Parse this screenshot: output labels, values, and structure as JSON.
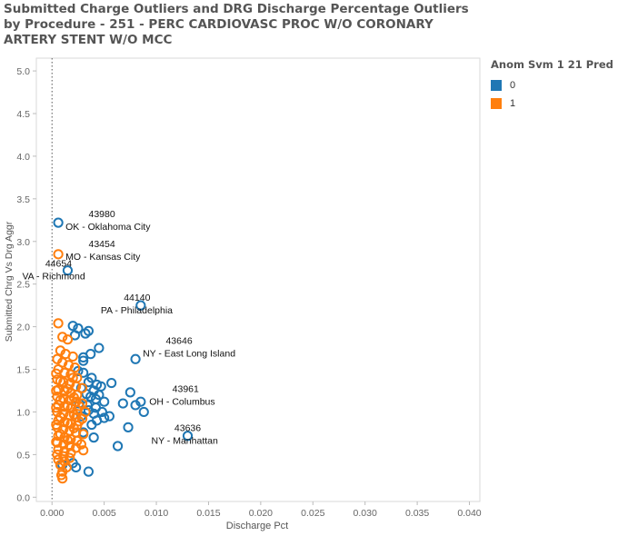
{
  "chart_data": {
    "type": "scatter",
    "title": "Submitted Charge Outliers and DRG Discharge Percentage Outliers by Procedure - 251 - PERC CARDIOVASC PROC W/O CORONARY ARTERY STENT W/O MCC",
    "xlabel": "Discharge Pct",
    "ylabel": "Submitted Chrg Vs Drg Aggr",
    "xlim": [
      -0.0015,
      0.041
    ],
    "ylim": [
      -0.05,
      5.15
    ],
    "x_ticks": [
      "0.000",
      "0.005",
      "0.010",
      "0.015",
      "0.020",
      "0.025",
      "0.030",
      "0.035",
      "0.040"
    ],
    "x_tick_values": [
      0,
      0.005,
      0.01,
      0.015,
      0.02,
      0.025,
      0.03,
      0.035,
      0.04
    ],
    "y_ticks": [
      "0.0",
      "0.5",
      "1.0",
      "1.5",
      "2.0",
      "2.5",
      "3.0",
      "3.5",
      "4.0",
      "4.5",
      "5.0"
    ],
    "y_tick_values": [
      0,
      0.5,
      1,
      1.5,
      2,
      2.5,
      3,
      3.5,
      4,
      4.5,
      5
    ],
    "reference_line_x": 0,
    "grid": false,
    "legend": {
      "title": "Anom Svm 1 21 Pred",
      "placement": "top-right",
      "entries": [
        {
          "label": "0",
          "color": "#1f77b4"
        },
        {
          "label": "1",
          "color": "#ff7f0e"
        }
      ]
    },
    "series": [
      {
        "name": "0",
        "color": "#1f77b4",
        "points": [
          [
            0.0006,
            3.22
          ],
          [
            0.0015,
            2.66
          ],
          [
            0.0085,
            2.25
          ],
          [
            0.002,
            2.01
          ],
          [
            0.0025,
            1.98
          ],
          [
            0.0035,
            1.95
          ],
          [
            0.0032,
            1.92
          ],
          [
            0.0022,
            1.9
          ],
          [
            0.0045,
            1.75
          ],
          [
            0.0037,
            1.68
          ],
          [
            0.003,
            1.64
          ],
          [
            0.003,
            1.6
          ],
          [
            0.008,
            1.62
          ],
          [
            0.0025,
            1.48
          ],
          [
            0.003,
            1.46
          ],
          [
            0.0038,
            1.4
          ],
          [
            0.0035,
            1.35
          ],
          [
            0.0047,
            1.3
          ],
          [
            0.0043,
            1.32
          ],
          [
            0.0057,
            1.34
          ],
          [
            0.0028,
            1.28
          ],
          [
            0.004,
            1.25
          ],
          [
            0.0045,
            1.2
          ],
          [
            0.0033,
            1.21
          ],
          [
            0.0037,
            1.18
          ],
          [
            0.0042,
            1.15
          ],
          [
            0.0075,
            1.23
          ],
          [
            0.005,
            1.12
          ],
          [
            0.0068,
            1.1
          ],
          [
            0.008,
            1.08
          ],
          [
            0.0085,
            1.12
          ],
          [
            0.0042,
            1.05
          ],
          [
            0.0035,
            1.02
          ],
          [
            0.0048,
            1.0
          ],
          [
            0.0088,
            1.0
          ],
          [
            0.004,
            0.98
          ],
          [
            0.0055,
            0.95
          ],
          [
            0.005,
            0.93
          ],
          [
            0.0043,
            0.9
          ],
          [
            0.0038,
            0.85
          ],
          [
            0.0073,
            0.82
          ],
          [
            0.003,
            0.76
          ],
          [
            0.004,
            0.7
          ],
          [
            0.013,
            0.72
          ],
          [
            0.0063,
            0.6
          ],
          [
            0.002,
            0.4
          ],
          [
            0.0023,
            0.35
          ],
          [
            0.0035,
            0.3
          ],
          [
            0.001,
            0.38
          ],
          [
            0.0028,
            0.95
          ],
          [
            0.0026,
            1.1
          ],
          [
            0.0034,
            1.08
          ]
        ]
      },
      {
        "name": "1",
        "color": "#ff7f0e",
        "points": [
          [
            0.0006,
            2.85
          ],
          [
            0.0006,
            2.04
          ],
          [
            0.001,
            1.88
          ],
          [
            0.0015,
            1.85
          ],
          [
            0.0008,
            1.72
          ],
          [
            0.0013,
            1.68
          ],
          [
            0.002,
            1.65
          ],
          [
            0.0005,
            1.62
          ],
          [
            0.001,
            1.58
          ],
          [
            0.0016,
            1.55
          ],
          [
            0.0022,
            1.52
          ],
          [
            0.0006,
            1.5
          ],
          [
            0.0012,
            1.46
          ],
          [
            0.0018,
            1.44
          ],
          [
            0.0024,
            1.4
          ],
          [
            0.0005,
            1.38
          ],
          [
            0.0011,
            1.35
          ],
          [
            0.0017,
            1.33
          ],
          [
            0.0023,
            1.3
          ],
          [
            0.0029,
            1.28
          ],
          [
            0.0006,
            1.26
          ],
          [
            0.0012,
            1.24
          ],
          [
            0.0018,
            1.22
          ],
          [
            0.0024,
            1.2
          ],
          [
            0.0005,
            1.18
          ],
          [
            0.0011,
            1.16
          ],
          [
            0.0017,
            1.14
          ],
          [
            0.0023,
            1.12
          ],
          [
            0.0029,
            1.1
          ],
          [
            0.0006,
            1.08
          ],
          [
            0.0012,
            1.06
          ],
          [
            0.0018,
            1.04
          ],
          [
            0.0024,
            1.02
          ],
          [
            0.0005,
            1.0
          ],
          [
            0.0011,
            0.98
          ],
          [
            0.0017,
            0.96
          ],
          [
            0.0023,
            0.94
          ],
          [
            0.0029,
            0.92
          ],
          [
            0.0006,
            0.9
          ],
          [
            0.0012,
            0.88
          ],
          [
            0.0018,
            0.86
          ],
          [
            0.0024,
            0.84
          ],
          [
            0.0005,
            0.82
          ],
          [
            0.0011,
            0.8
          ],
          [
            0.0017,
            0.78
          ],
          [
            0.0023,
            0.76
          ],
          [
            0.003,
            0.74
          ],
          [
            0.0006,
            0.72
          ],
          [
            0.0012,
            0.7
          ],
          [
            0.0018,
            0.68
          ],
          [
            0.0024,
            0.66
          ],
          [
            0.0005,
            0.64
          ],
          [
            0.0011,
            0.62
          ],
          [
            0.0017,
            0.6
          ],
          [
            0.0023,
            0.58
          ],
          [
            0.0006,
            0.56
          ],
          [
            0.0012,
            0.54
          ],
          [
            0.0018,
            0.52
          ],
          [
            0.003,
            0.55
          ],
          [
            0.0005,
            0.5
          ],
          [
            0.0011,
            0.48
          ],
          [
            0.0017,
            0.46
          ],
          [
            0.0006,
            0.44
          ],
          [
            0.0012,
            0.42
          ],
          [
            0.0008,
            0.38
          ],
          [
            0.0014,
            0.35
          ],
          [
            0.001,
            0.3
          ],
          [
            0.0009,
            0.26
          ],
          [
            0.001,
            0.22
          ],
          [
            0.0004,
            1.45
          ],
          [
            0.0004,
            1.25
          ],
          [
            0.0004,
            1.05
          ],
          [
            0.0004,
            0.85
          ],
          [
            0.0004,
            0.65
          ],
          [
            0.0008,
            1.36
          ],
          [
            0.0008,
            1.14
          ],
          [
            0.0008,
            0.94
          ],
          [
            0.0008,
            0.74
          ],
          [
            0.0015,
            1.27
          ],
          [
            0.0015,
            1.07
          ],
          [
            0.0015,
            0.87
          ],
          [
            0.0015,
            0.67
          ],
          [
            0.0021,
            1.17
          ],
          [
            0.0021,
            0.97
          ],
          [
            0.0021,
            0.81
          ],
          [
            0.0026,
            1.07
          ],
          [
            0.0026,
            0.89
          ],
          [
            0.0032,
            1.0
          ],
          [
            0.0028,
            0.62
          ],
          [
            0.002,
            1.4
          ]
        ]
      }
    ],
    "annotations": [
      {
        "id": "43980",
        "place": "OK - Oklahoma City",
        "x": 0.0006,
        "y": 3.22,
        "dx": 8,
        "dy": -1
      },
      {
        "id": "43454",
        "place": "MO - Kansas City",
        "x": 0.0006,
        "y": 2.85,
        "dx": 8,
        "dy": -3
      },
      {
        "id": "44654",
        "place": "VA - Richmond",
        "x": 0.0015,
        "y": 2.66,
        "dx": -50,
        "dy": 1
      },
      {
        "id": "44140",
        "place": "PA - Philadelphia",
        "x": 0.0085,
        "y": 2.25,
        "dx": -44,
        "dy": 0
      },
      {
        "id": "43646",
        "place": "NY - East Long Island",
        "x": 0.008,
        "y": 1.62,
        "dx": 8,
        "dy": -12
      },
      {
        "id": "43961",
        "place": "OH - Columbus",
        "x": 0.0088,
        "y": 1.0,
        "dx": 6,
        "dy": -17
      },
      {
        "id": "43636",
        "place": "NY - Manhattan",
        "x": 0.013,
        "y": 0.72,
        "dx": -40,
        "dy": 0
      }
    ]
  }
}
